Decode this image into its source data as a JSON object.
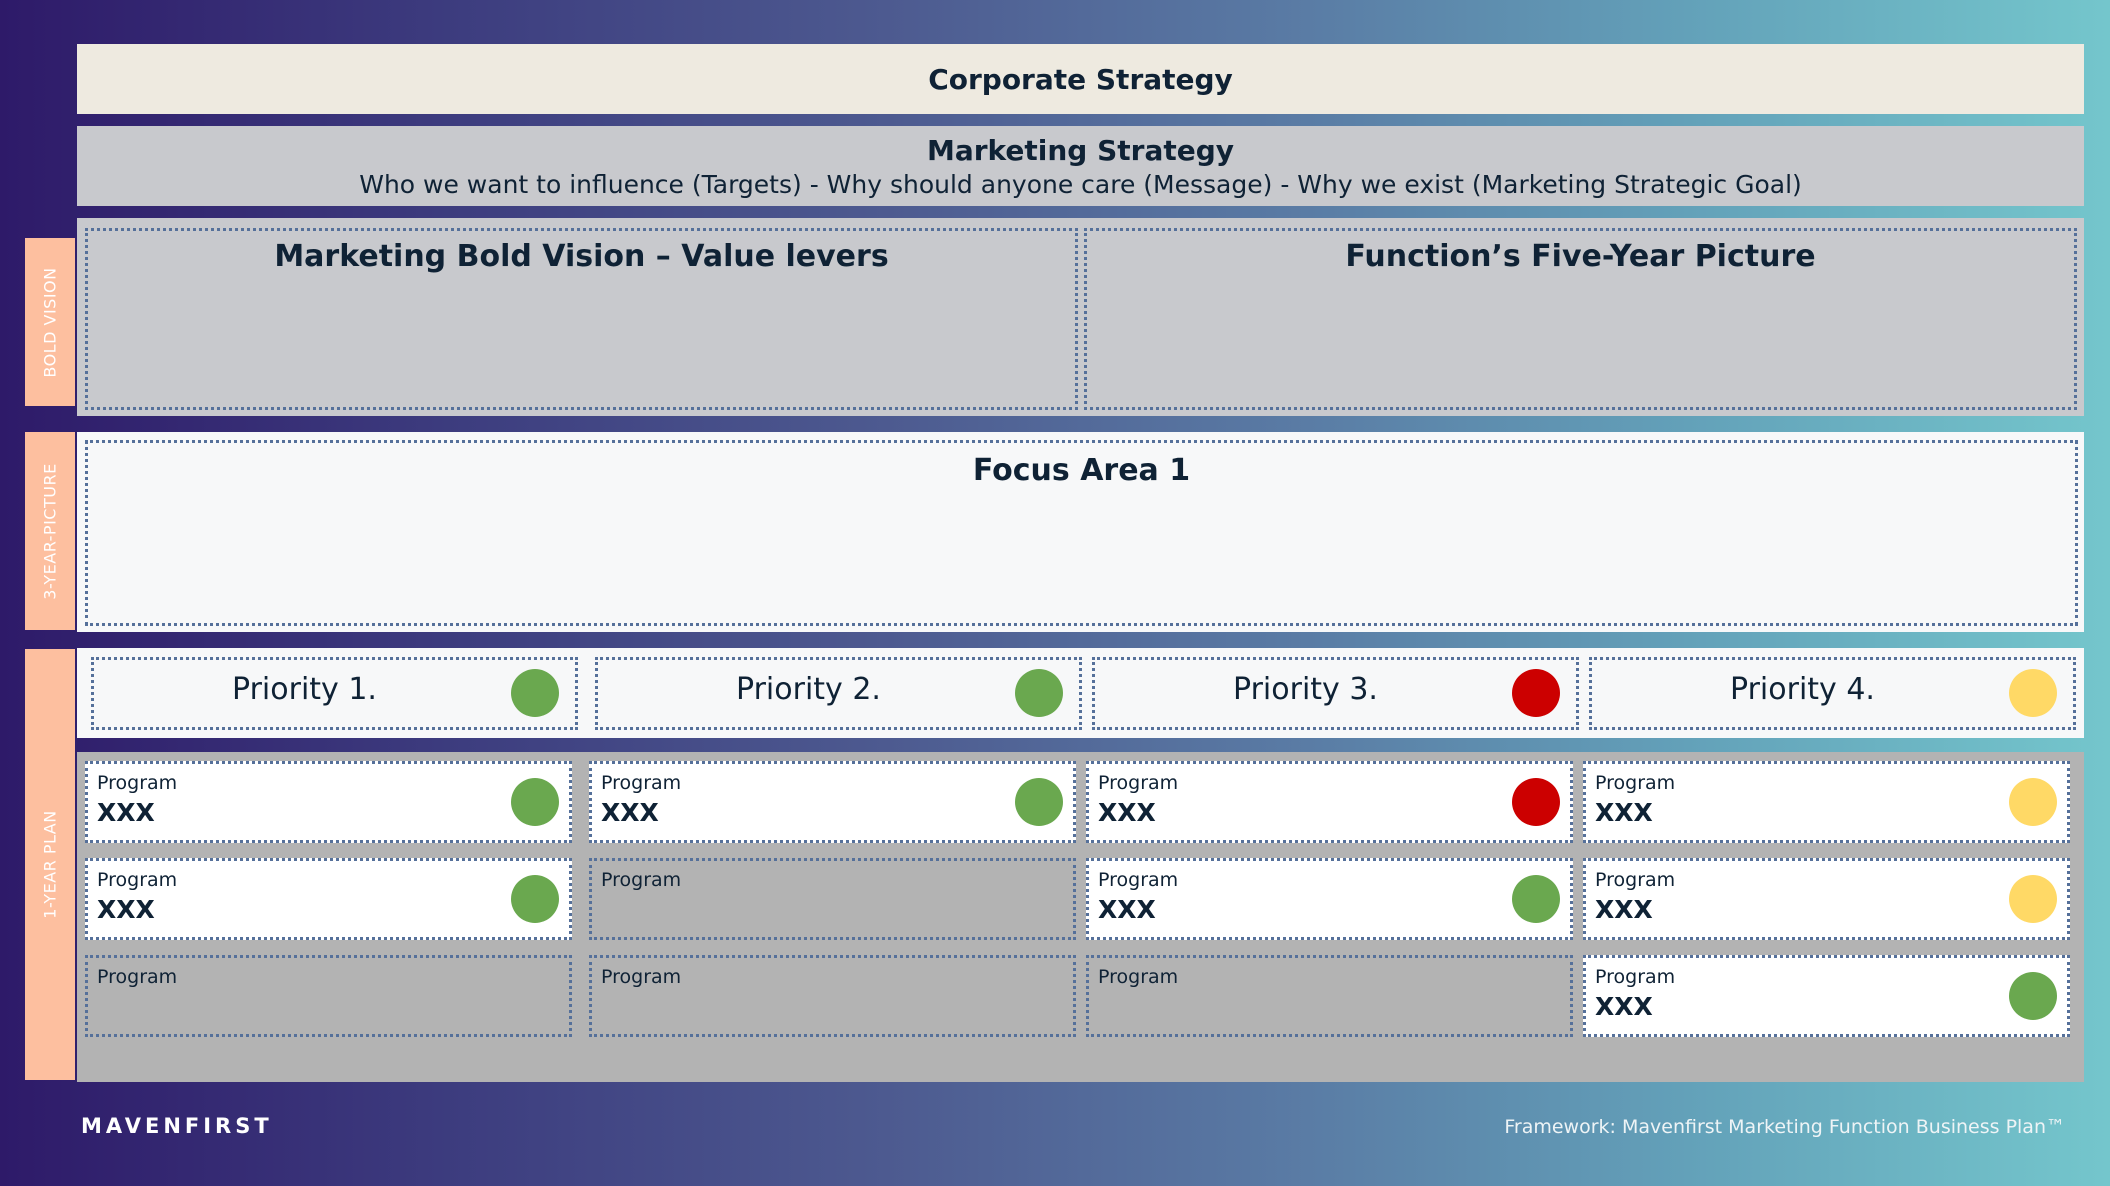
{
  "corporate_strategy": "Corporate Strategy",
  "marketing_strategy": {
    "title": "Marketing Strategy",
    "subtitle": "Who we want to influence (Targets) - Why should anyone care (Message) - Why we exist (Marketing Strategic Goal)"
  },
  "side_tabs": {
    "bold_vision": "BOLD VISION",
    "three_year": "3-YEAR-PICTURE",
    "one_year": "1-YEAR PLAN"
  },
  "bold_vision": {
    "left_title": "Marketing Bold Vision – Value levers",
    "right_title": "Function’s Five-Year Picture"
  },
  "focus_area": "Focus Area 1",
  "priorities": [
    {
      "label": "Priority 1.",
      "status": "green"
    },
    {
      "label": "Priority 2.",
      "status": "green"
    },
    {
      "label": "Priority 3.",
      "status": "red"
    },
    {
      "label": "Priority 4.",
      "status": "yellow"
    }
  ],
  "program_label": "Program",
  "programs": [
    [
      {
        "label": "Program",
        "value": "XXX",
        "status": "green"
      },
      {
        "label": "Program",
        "value": "XXX",
        "status": "green"
      },
      {
        "label": "Program",
        "value": "",
        "status": ""
      }
    ],
    [
      {
        "label": "Program",
        "value": "XXX",
        "status": "green"
      },
      {
        "label": "Program",
        "value": "",
        "status": ""
      },
      {
        "label": "Program",
        "value": "",
        "status": ""
      }
    ],
    [
      {
        "label": "Program",
        "value": "XXX",
        "status": "red"
      },
      {
        "label": "Program",
        "value": "XXX",
        "status": "green"
      },
      {
        "label": "Program",
        "value": "",
        "status": ""
      }
    ],
    [
      {
        "label": "Program",
        "value": "XXX",
        "status": "yellow"
      },
      {
        "label": "Program",
        "value": "XXX",
        "status": "yellow"
      },
      {
        "label": "Program",
        "value": "XXX",
        "status": "green"
      }
    ]
  ],
  "colors": {
    "green": "#6aa84f",
    "red": "#cc0000",
    "yellow": "#ffd966",
    "accent_tab": "#fdbf9f"
  },
  "footer": {
    "brand": "MAVENFIRST",
    "framework": "Framework: Mavenfirst Marketing Function Business Plan™"
  }
}
